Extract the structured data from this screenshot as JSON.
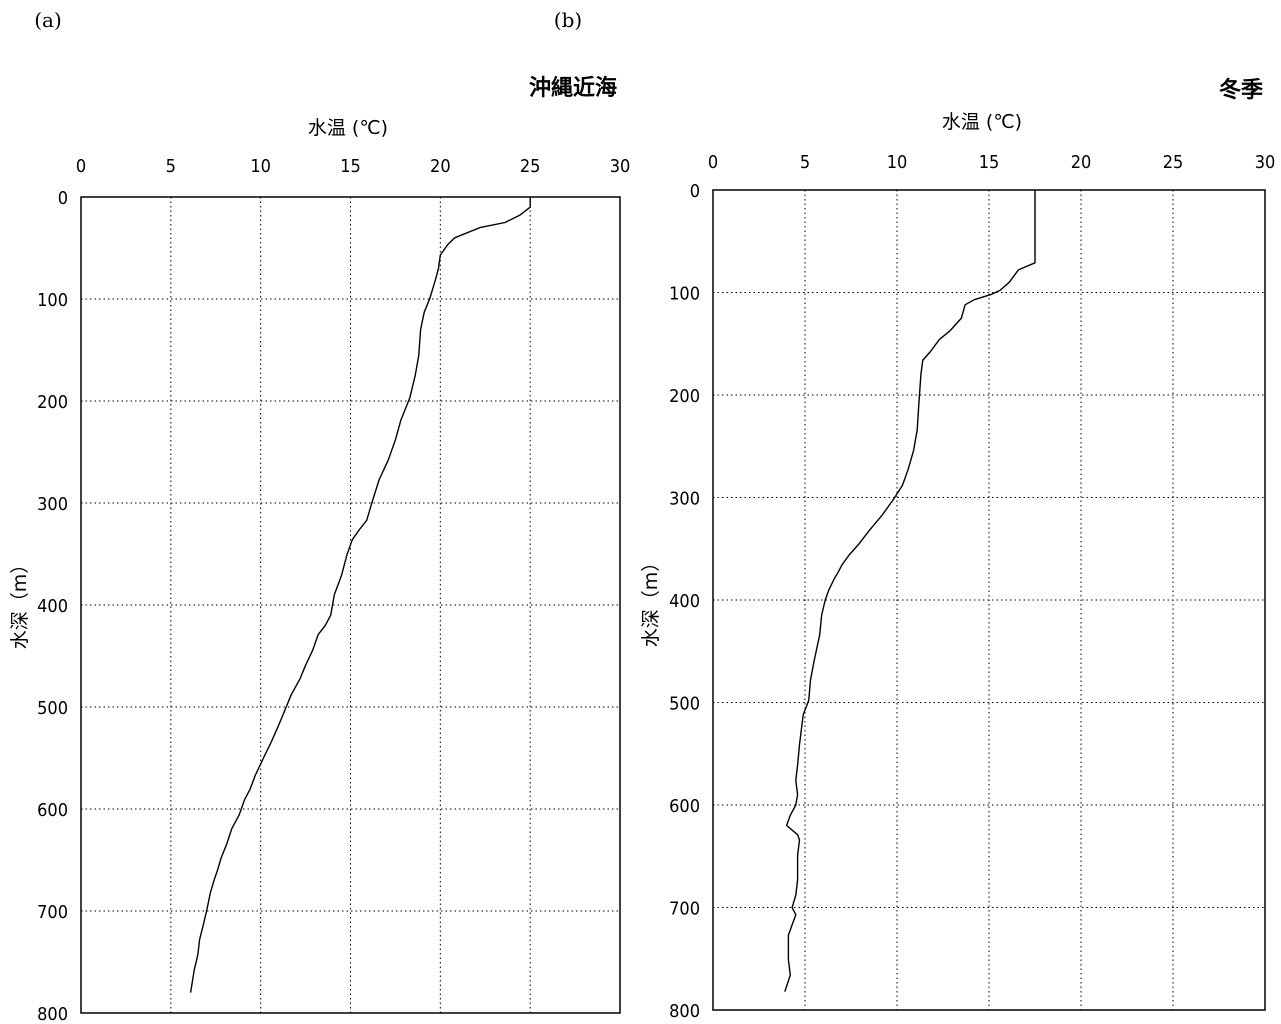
{
  "panels": [
    {
      "label": "(a)"
    },
    {
      "label": "(b)"
    }
  ],
  "chart_data": [
    {
      "type": "line",
      "panel": "(a)",
      "title": "沖縄近海",
      "xlabel": "水温 (℃)",
      "ylabel": "水深（m）",
      "xlim": [
        0,
        30
      ],
      "ylim": [
        0,
        800
      ],
      "x_ticks": [
        0,
        5,
        10,
        15,
        20,
        25,
        30
      ],
      "y_ticks": [
        0,
        100,
        200,
        300,
        400,
        500,
        600,
        700,
        800
      ],
      "x_axis_position": "top",
      "y_inverted": true,
      "grid": true,
      "series": [
        {
          "x": [
            25.0,
            25.0,
            24.4,
            23.6,
            22.2,
            20.8,
            20.4,
            20.0,
            19.9,
            19.7,
            19.4,
            19.1,
            18.9,
            18.8,
            18.6,
            18.3,
            17.8,
            17.5,
            17.1,
            16.6,
            16.2,
            15.9,
            15.5,
            15.1,
            14.8,
            14.5,
            14.1,
            13.9,
            13.6,
            13.2,
            12.9,
            12.5,
            12.2,
            11.7,
            11.4,
            11.0,
            10.6,
            10.1,
            9.7,
            9.4,
            9.1,
            8.8,
            8.4,
            8.1,
            7.8,
            7.6,
            7.4,
            7.2,
            7.0,
            6.8,
            6.6,
            6.5,
            6.3,
            6.1
          ],
          "y": [
            0,
            10,
            18,
            25,
            30,
            40,
            47,
            57,
            70,
            83,
            100,
            113,
            130,
            155,
            175,
            197,
            219,
            238,
            258,
            277,
            299,
            317,
            326,
            336,
            351,
            371,
            390,
            410,
            420,
            429,
            444,
            459,
            472,
            488,
            501,
            518,
            534,
            552,
            567,
            581,
            591,
            606,
            619,
            635,
            648,
            660,
            670,
            682,
            699,
            714,
            728,
            743,
            758,
            780
          ]
        }
      ]
    },
    {
      "type": "line",
      "panel": "(b)",
      "title": "冬季",
      "xlabel": "水温 (℃)",
      "ylabel": "水深（m）",
      "xlim": [
        0,
        30
      ],
      "ylim": [
        0,
        800
      ],
      "x_ticks": [
        0,
        5,
        10,
        15,
        20,
        25,
        30
      ],
      "y_ticks": [
        0,
        100,
        200,
        300,
        400,
        500,
        600,
        700,
        800
      ],
      "x_axis_position": "top",
      "y_inverted": true,
      "grid": true,
      "series": [
        {
          "x": [
            17.5,
            17.5,
            16.6,
            16.1,
            15.6,
            15.1,
            14.2,
            13.7,
            13.5,
            12.9,
            12.3,
            11.8,
            11.4,
            11.3,
            11.2,
            11.1,
            10.9,
            10.6,
            10.3,
            9.8,
            9.2,
            8.5,
            7.9,
            7.4,
            7.0,
            6.8,
            6.6,
            6.3,
            6.1,
            5.9,
            5.8,
            5.5,
            5.3,
            5.2,
            4.9,
            4.8,
            4.7,
            4.6,
            4.5,
            4.6,
            4.5,
            4.2,
            4.0,
            4.6,
            4.7,
            4.6,
            4.6,
            4.5,
            4.3,
            4.5,
            4.3,
            4.1,
            4.1,
            4.2,
            3.9
          ],
          "y": [
            0,
            71,
            78,
            90,
            98,
            102,
            107,
            112,
            125,
            137,
            146,
            158,
            166,
            180,
            205,
            234,
            254,
            273,
            288,
            302,
            317,
            332,
            346,
            356,
            366,
            373,
            379,
            390,
            400,
            415,
            434,
            459,
            478,
            498,
            512,
            527,
            541,
            561,
            576,
            590,
            600,
            610,
            620,
            629,
            634,
            649,
            673,
            688,
            700,
            707,
            717,
            727,
            751,
            766,
            782
          ]
        }
      ]
    }
  ]
}
